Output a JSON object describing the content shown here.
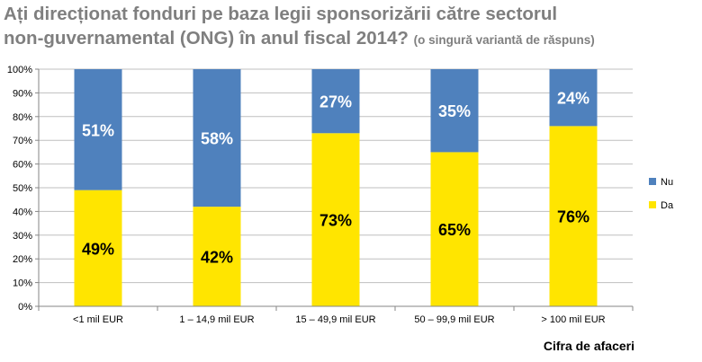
{
  "chart_data": {
    "type": "bar",
    "stacked": true,
    "title_line1": "Ați direcționat fonduri pe baza legii sponsorizării către sectorul",
    "title_line2": "non-guvernamental (ONG) în anul fiscal 2014?",
    "subtitle": "(o singură variantă de răspuns)",
    "xlabel": "Cifra de afaceri",
    "ylabel": "",
    "ylim": [
      0,
      100
    ],
    "yticks": [
      "0%",
      "10%",
      "20%",
      "30%",
      "40%",
      "50%",
      "60%",
      "70%",
      "80%",
      "90%",
      "100%"
    ],
    "categories": [
      "<1 mil EUR",
      "1 – 14,9 mil EUR",
      "15 – 49,9 mil EUR",
      "50 – 99,9 mil EUR",
      "> 100 mil EUR"
    ],
    "series": [
      {
        "name": "Da",
        "color": "#ffe500",
        "values": [
          49,
          42,
          73,
          65,
          76
        ],
        "labels": [
          "49%",
          "42%",
          "73%",
          "65%",
          "76%"
        ],
        "label_color": "#000000"
      },
      {
        "name": "Nu",
        "color": "#4f81bd",
        "values": [
          51,
          58,
          27,
          35,
          24
        ],
        "labels": [
          "51%",
          "58%",
          "27%",
          "35%",
          "24%"
        ],
        "label_color": "#ffffff"
      }
    ],
    "legend": {
      "position": "right",
      "order": [
        "Nu",
        "Da"
      ]
    },
    "grid": true,
    "colors": {
      "gridline": "#bfbfbf",
      "axis": "#868686",
      "title": "#7f7f7f"
    }
  }
}
